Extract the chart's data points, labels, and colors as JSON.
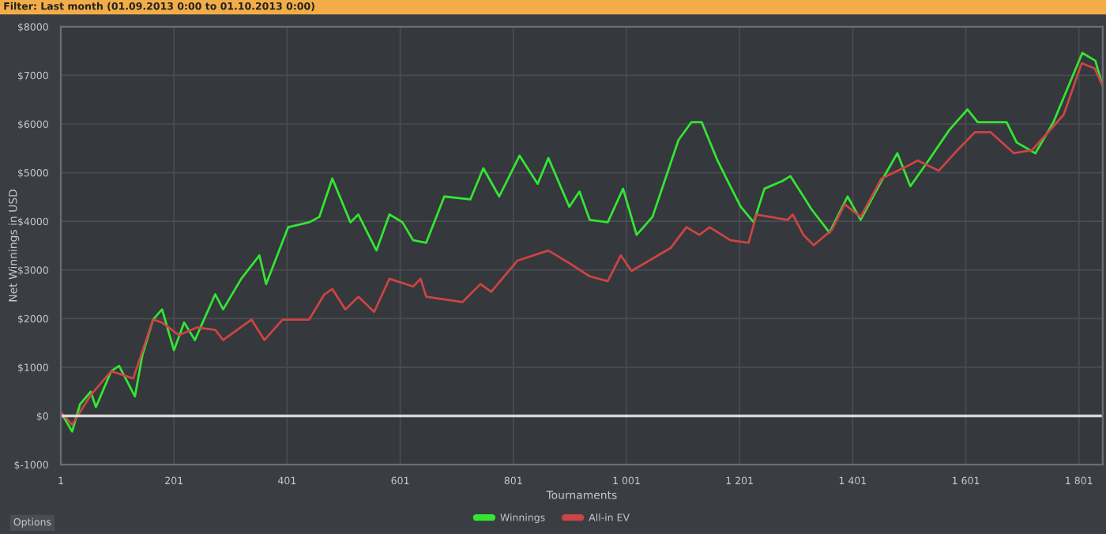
{
  "chart_data": {
    "type": "line",
    "title": "Filter: Last month (01.09.2013 0:00 to 01.10.2013 0:00)",
    "xlabel": "Tournaments",
    "ylabel": "Net Winnings in USD",
    "annotations": [
      "Options"
    ],
    "xlim": [
      1,
      1843
    ],
    "ylim": [
      -1000,
      8000
    ],
    "xticks": [
      1,
      201,
      401,
      601,
      801,
      {
        "value": 1001,
        "label": "1 001"
      },
      {
        "value": 1201,
        "label": "1 201"
      },
      {
        "value": 1401,
        "label": "1 401"
      },
      {
        "value": 1601,
        "label": "1 601"
      },
      {
        "value": 1801,
        "label": "1 801"
      }
    ],
    "yticks": [
      {
        "value": -1000,
        "label": "$-1000"
      },
      {
        "value": 0,
        "label": "$0"
      },
      {
        "value": 1000,
        "label": "$1000"
      },
      {
        "value": 2000,
        "label": "$2000"
      },
      {
        "value": 3000,
        "label": "$3000"
      },
      {
        "value": 4000,
        "label": "$4000"
      },
      {
        "value": 5000,
        "label": "$5000"
      },
      {
        "value": 6000,
        "label": "$6000"
      },
      {
        "value": 7000,
        "label": "$7000"
      },
      {
        "value": 8000,
        "label": "$8000"
      }
    ],
    "grid": true,
    "legend": "bottom",
    "ref_lines": [
      {
        "axis": "y",
        "value": 0,
        "color": "#d8d8d8"
      }
    ],
    "series": [
      {
        "name": "Winnings",
        "color": "#33e633",
        "x": [
          1,
          21,
          35,
          54,
          63,
          90,
          104,
          132,
          145,
          164,
          180,
          201,
          219,
          238,
          274,
          288,
          320,
          352,
          364,
          403,
          440,
          458,
          481,
          513,
          527,
          559,
          582,
          605,
          624,
          647,
          679,
          725,
          748,
          776,
          812,
          844,
          863,
          900,
          918,
          936,
          968,
          995,
          1019,
          1047,
          1093,
          1116,
          1134,
          1162,
          1180,
          1203,
          1226,
          1245,
          1277,
          1291,
          1314,
          1328,
          1360,
          1392,
          1415,
          1452,
          1480,
          1503,
          1535,
          1572,
          1604,
          1622,
          1673,
          1691,
          1724,
          1756,
          1807,
          1830,
          1843
        ],
        "values": [
          80,
          -320,
          240,
          500,
          180,
          920,
          1030,
          400,
          1240,
          1980,
          2190,
          1350,
          1920,
          1560,
          2500,
          2190,
          2820,
          3300,
          2710,
          3880,
          3980,
          4090,
          4880,
          3980,
          4140,
          3400,
          4140,
          3980,
          3610,
          3560,
          4510,
          4450,
          5090,
          4510,
          5350,
          4770,
          5300,
          4300,
          4610,
          4030,
          3980,
          4670,
          3720,
          4090,
          5670,
          6040,
          6040,
          5250,
          4830,
          4300,
          3980,
          4670,
          4830,
          4930,
          4510,
          4250,
          3770,
          4510,
          4030,
          4830,
          5400,
          4720,
          5250,
          5880,
          6300,
          6040,
          6040,
          5620,
          5400,
          6040,
          7460,
          7300,
          6780
        ]
      },
      {
        "name": "All-in EV",
        "color": "#cc4444",
        "x": [
          1,
          21,
          54,
          90,
          129,
          164,
          180,
          210,
          242,
          274,
          288,
          338,
          361,
          393,
          440,
          467,
          481,
          504,
          527,
          555,
          582,
          624,
          637,
          647,
          711,
          743,
          762,
          808,
          863,
          900,
          936,
          968,
          991,
          1010,
          1079,
          1107,
          1130,
          1148,
          1185,
          1217,
          1231,
          1286,
          1295,
          1314,
          1332,
          1364,
          1387,
          1415,
          1452,
          1498,
          1516,
          1553,
          1590,
          1617,
          1645,
          1686,
          1718,
          1774,
          1806,
          1829,
          1843
        ],
        "values": [
          80,
          -180,
          430,
          920,
          770,
          1980,
          1920,
          1660,
          1820,
          1770,
          1560,
          1980,
          1560,
          1980,
          1980,
          2500,
          2610,
          2190,
          2450,
          2140,
          2820,
          2660,
          2820,
          2450,
          2340,
          2710,
          2550,
          3190,
          3400,
          3140,
          2870,
          2770,
          3300,
          2980,
          3450,
          3880,
          3720,
          3880,
          3610,
          3560,
          4140,
          4030,
          4140,
          3720,
          3510,
          3820,
          4350,
          4090,
          4880,
          5140,
          5250,
          5040,
          5510,
          5830,
          5830,
          5400,
          5460,
          6190,
          7250,
          7140,
          6780
        ]
      }
    ]
  }
}
